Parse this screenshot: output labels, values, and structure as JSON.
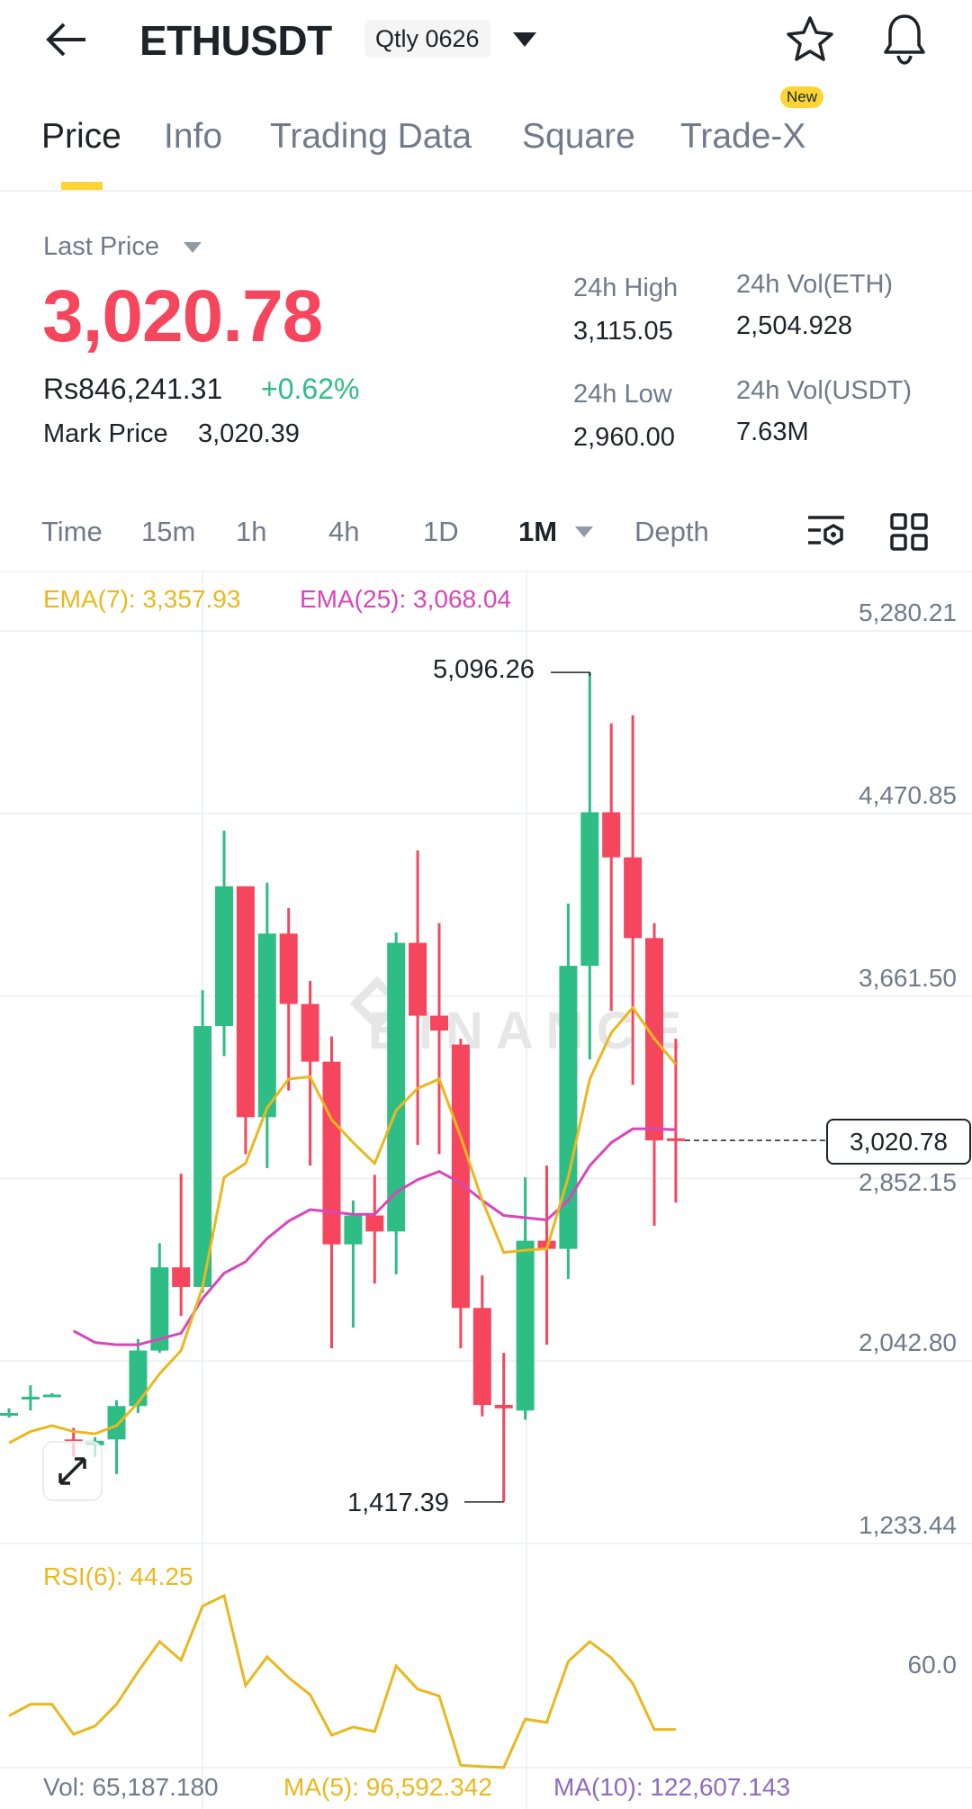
{
  "header": {
    "title": "ETHUSDT",
    "contract": "Qtly 0626",
    "icons": [
      "back-arrow-icon",
      "caret-down-icon",
      "star-icon",
      "bell-icon"
    ]
  },
  "tabs": [
    {
      "label": "Price",
      "active": true
    },
    {
      "label": "Info"
    },
    {
      "label": "Trading Data"
    },
    {
      "label": "Square"
    },
    {
      "label": "Trade-X",
      "badge": "New"
    }
  ],
  "price": {
    "label": "Last Price",
    "last": "3,020.78",
    "local": "Rs846,241.31",
    "change": "+0.62%",
    "mark_label": "Mark Price",
    "mark": "3,020.39"
  },
  "stats": {
    "high_label": "24h High",
    "high": "3,115.05",
    "low_label": "24h Low",
    "low": "2,960.00",
    "vol_eth_label": "24h Vol(ETH)",
    "vol_eth": "2,504.928",
    "vol_usdt_label": "24h Vol(USDT)",
    "vol_usdt": "7.63M"
  },
  "intervals": [
    "Time",
    "15m",
    "1h",
    "4h",
    "1D",
    "1M",
    "Depth"
  ],
  "selected_interval": "1M",
  "colors": {
    "up": "#2EBD85",
    "down": "#F6465D",
    "ema7": "#E9B81F",
    "ema25": "#D946B8",
    "accent": "#FCD535",
    "ma10": "#8E6BBF"
  },
  "chart_data": {
    "type": "candlestick",
    "ema_legend": {
      "ema7": "EMA(7): 3,357.93",
      "ema25": "EMA(25): 3,068.04"
    },
    "y_ticks": [
      "5,280.21",
      "4,470.85",
      "3,661.50",
      "2,852.15",
      "2,042.80",
      "1,233.44"
    ],
    "y_tick_values": [
      5280.21,
      4470.85,
      3661.5,
      2852.15,
      2042.8,
      1233.44
    ],
    "ylim": [
      1233.44,
      5280.21
    ],
    "max_label": "5,096.26",
    "min_label": "1,417.39",
    "current_price_label": "3,020.78",
    "current_price": 3020.78,
    "watermark": "BINANCE",
    "candles": [
      [
        1812,
        1812,
        1833,
        1792
      ],
      [
        1884,
        1884,
        1935,
        1823
      ],
      [
        1894,
        1894,
        1900,
        1890
      ],
      [
        1695,
        1679,
        1746,
        1618
      ],
      [
        1669,
        1689,
        1705,
        1618
      ],
      [
        1695,
        1843,
        1869,
        1541
      ],
      [
        1843,
        2089,
        2140,
        1812
      ],
      [
        2089,
        2458,
        2565,
        2079
      ],
      [
        2458,
        2371,
        2873,
        2243
      ],
      [
        2371,
        3528,
        3687,
        2345
      ],
      [
        3528,
        4148,
        4394,
        3395
      ],
      [
        4148,
        3124,
        4148,
        2960
      ],
      [
        3124,
        3938,
        4164,
        2898
      ],
      [
        3938,
        3626,
        4051,
        3242
      ],
      [
        3626,
        3370,
        3728,
        2909
      ],
      [
        3370,
        2560,
        3482,
        2099
      ],
      [
        2560,
        2688,
        2755,
        2191
      ],
      [
        2688,
        2617,
        2868,
        2386
      ],
      [
        2617,
        3897,
        3943,
        2427
      ],
      [
        3897,
        3574,
        4307,
        3001
      ],
      [
        3574,
        3508,
        3984,
        2960
      ],
      [
        3446,
        2278,
        3472,
        2099
      ],
      [
        2278,
        1848,
        2422,
        1797
      ],
      [
        1848,
        1833,
        2079,
        1417.39
      ],
      [
        1823,
        2576,
        2857,
        1782
      ],
      [
        2576,
        2540,
        2909,
        2115
      ],
      [
        2540,
        3795,
        4071,
        2407
      ],
      [
        3795,
        4476,
        5096.26,
        3380
      ],
      [
        4476,
        4276,
        4870,
        3595
      ],
      [
        4276,
        3918,
        4906,
        3267
      ],
      [
        3918,
        3021,
        3984,
        2642
      ],
      [
        3030,
        3020.78,
        3472,
        2745
      ]
    ],
    "ema7": [
      1679,
      1730,
      1756,
      1730,
      1720,
      1756,
      1858,
      1986,
      2089,
      2371,
      2857,
      2919,
      3165,
      3293,
      3303,
      3113,
      3011,
      2919,
      3154,
      3252,
      3293,
      3037,
      2755,
      2524,
      2534,
      2540,
      2857,
      3293,
      3498,
      3610,
      3472,
      3357.93
    ],
    "ema25": [
      null,
      null,
      null,
      2176,
      2125,
      2115,
      2115,
      2140,
      2166,
      2320,
      2432,
      2483,
      2586,
      2663,
      2714,
      2704,
      2693,
      2693,
      2791,
      2847,
      2883,
      2832,
      2755,
      2688,
      2678,
      2668,
      2755,
      2909,
      3011,
      3072,
      3072,
      3068.04
    ],
    "rsi": {
      "label": "RSI(6): 44.25",
      "tick": "60.0",
      "values": [
        48.4,
        51.9,
        51.9,
        42.8,
        45.3,
        51.9,
        61.8,
        70.9,
        65.3,
        81.7,
        84.9,
        57.6,
        66.3,
        60,
        54.8,
        42.5,
        45.0,
        43.6,
        63.5,
        56.5,
        54.4,
        33.4,
        33.0,
        32.7,
        47.4,
        46.4,
        64.9,
        70.9,
        66.0,
        58.25,
        44.25,
        44.25
      ]
    },
    "volume": {
      "vol": "Vol: 65,187.180",
      "ma5": "MA(5): 96,592.342",
      "ma10": "MA(10): 122,607.143"
    }
  }
}
